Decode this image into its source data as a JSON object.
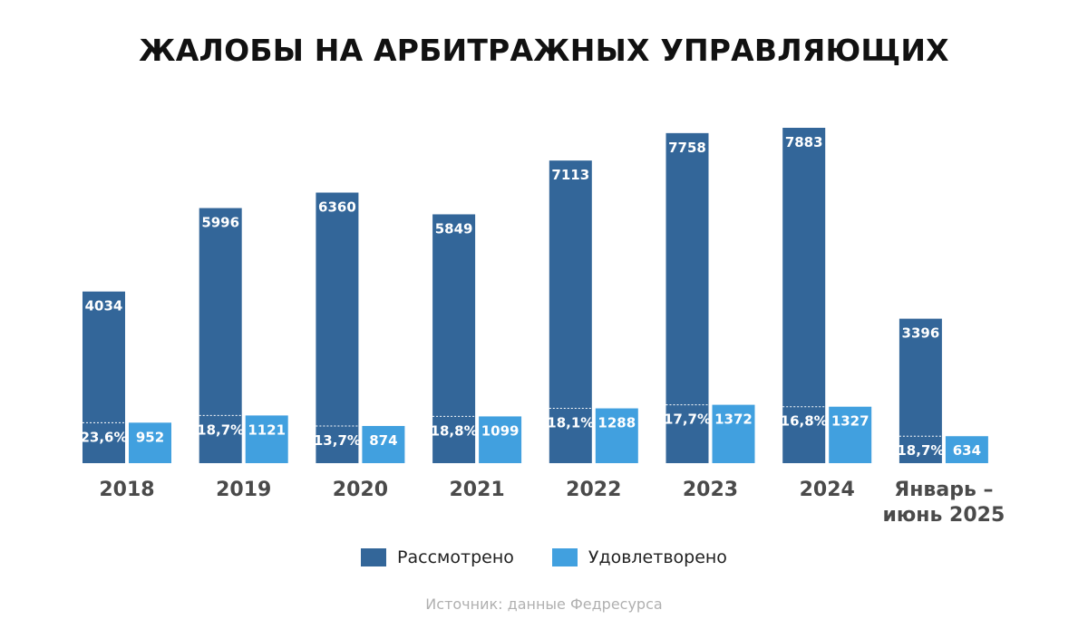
{
  "title": "ЖАЛОБЫ НА АРБИТРАЖНЫХ УПРАВЛЯЮЩИХ",
  "source": "Источник: данные Федресурса",
  "colors": {
    "reviewed": "#336699",
    "satisfied": "#41a0df"
  },
  "chart_data": {
    "type": "bar",
    "categories": [
      "2018",
      "2019",
      "2020",
      "2021",
      "2022",
      "2023",
      "2024",
      [
        "Январь –",
        "июнь 2025"
      ]
    ],
    "series": [
      {
        "name": "Рассмотрено",
        "values": [
          4034,
          5996,
          6360,
          5849,
          7113,
          7758,
          7883,
          3396
        ]
      },
      {
        "name": "Удовлетворено",
        "values": [
          952,
          1121,
          874,
          1099,
          1288,
          1372,
          1327,
          634
        ]
      }
    ],
    "share_labels": [
      "23,6%",
      "18,7%",
      "13,7%",
      "18,8%",
      "18,1%",
      "17,7%",
      "16,8%",
      "18,7%"
    ],
    "ylim": [
      0,
      7883
    ],
    "grid": false,
    "legend": "bottom-center",
    "xlabel": "",
    "ylabel": ""
  }
}
